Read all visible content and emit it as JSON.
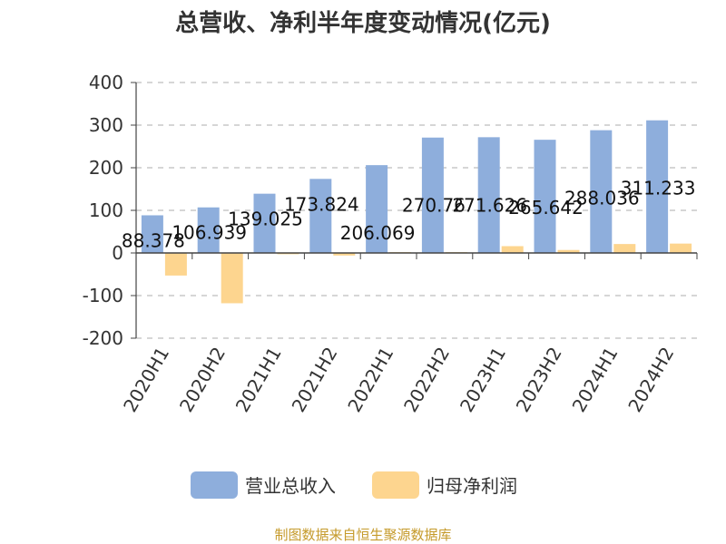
{
  "chart_data": {
    "type": "bar",
    "title": "总营收、净利半年度变动情况(亿元)",
    "categories": [
      "2020H1",
      "2020H2",
      "2021H1",
      "2021H2",
      "2022H1",
      "2022H2",
      "2023H1",
      "2023H2",
      "2024H1",
      "2024H2"
    ],
    "series": [
      {
        "name": "营业总收入",
        "color": "#8eaedc",
        "values": [
          88.378,
          106.939,
          139.025,
          173.824,
          206.069,
          270.76,
          271.626,
          265.642,
          288.036,
          311.233
        ],
        "labels": [
          "88.378",
          "106.939",
          "139.025",
          "173.824",
          "206.069",
          "270.76",
          "271.626",
          "265.642",
          "288.036",
          "311.233"
        ]
      },
      {
        "name": "归母净利润",
        "color": "#fdd58f",
        "values": [
          -53,
          -118,
          -3,
          -6,
          2,
          2,
          16,
          7,
          21,
          22
        ]
      }
    ],
    "ylim": [
      -200,
      400
    ],
    "yticks": [
      400,
      300,
      200,
      100,
      0,
      -100,
      -200
    ],
    "ytick_labels": [
      "400",
      "300",
      "200",
      "100",
      "0",
      "-100",
      "-200"
    ],
    "grid": true,
    "legend_position": "bottom"
  },
  "footer": "制图数据来自恒生聚源数据库"
}
